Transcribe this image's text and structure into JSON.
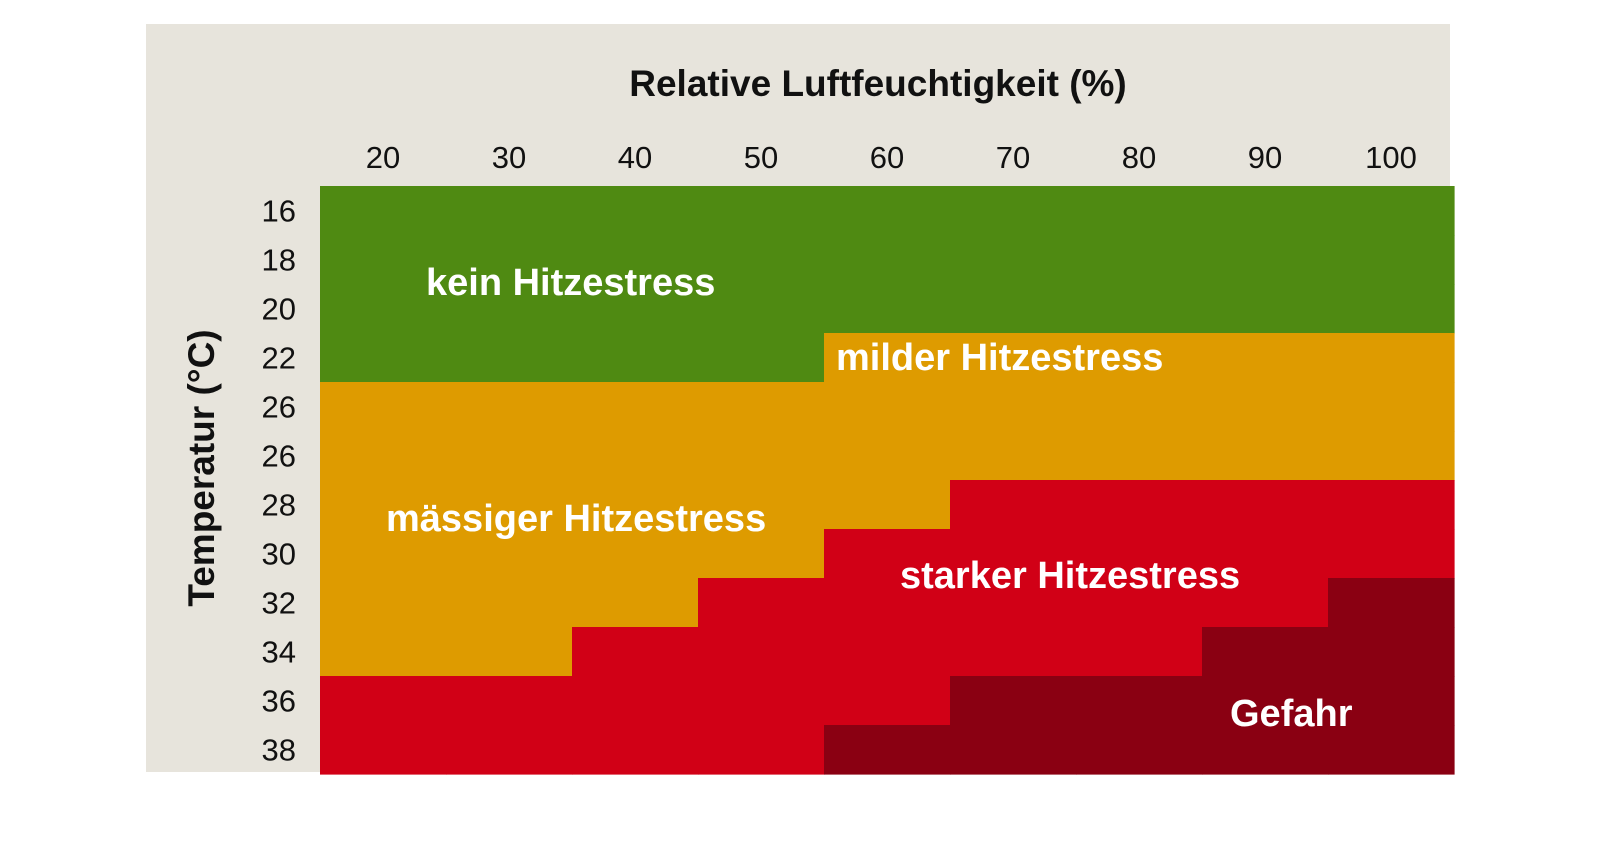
{
  "chart_data": {
    "type": "heatmap",
    "title": "",
    "xlabel": "Relative Luftfeuchtigkeit (%)",
    "ylabel": "Temperatur (°C)",
    "x": [
      "20",
      "30",
      "40",
      "50",
      "60",
      "70",
      "80",
      "90",
      "100"
    ],
    "y": [
      "16",
      "18",
      "20",
      "22",
      "26",
      "26",
      "28",
      "30",
      "32",
      "34",
      "36",
      "38"
    ],
    "categories": [
      {
        "name": "kein Hitzestress",
        "color": "#4f8a12"
      },
      {
        "name": "milder Hitzestress",
        "color": "#de9b00"
      },
      {
        "name": "mässiger Hitzestress",
        "color": "#de9b00"
      },
      {
        "name": "starker Hitzestress",
        "color": "#d10016"
      },
      {
        "name": "Gefahr",
        "color": "#8a0012"
      }
    ],
    "grid": [
      [
        0,
        0,
        0,
        0,
        0,
        0,
        0,
        0,
        0
      ],
      [
        0,
        0,
        0,
        0,
        0,
        0,
        0,
        0,
        0
      ],
      [
        0,
        0,
        0,
        0,
        0,
        0,
        0,
        0,
        0
      ],
      [
        0,
        0,
        0,
        0,
        1,
        1,
        1,
        1,
        1
      ],
      [
        2,
        2,
        2,
        2,
        1,
        1,
        1,
        1,
        1
      ],
      [
        2,
        2,
        2,
        2,
        1,
        1,
        1,
        1,
        1
      ],
      [
        2,
        2,
        2,
        2,
        2,
        3,
        3,
        3,
        3
      ],
      [
        2,
        2,
        2,
        2,
        3,
        3,
        3,
        3,
        3
      ],
      [
        2,
        2,
        2,
        3,
        3,
        3,
        3,
        3,
        4
      ],
      [
        2,
        2,
        3,
        3,
        3,
        3,
        3,
        4,
        4
      ],
      [
        3,
        3,
        3,
        3,
        3,
        4,
        4,
        4,
        4
      ],
      [
        3,
        3,
        3,
        3,
        4,
        4,
        4,
        4,
        4
      ]
    ],
    "legend": "none"
  },
  "colors": {
    "background": "#e7e4dc"
  }
}
